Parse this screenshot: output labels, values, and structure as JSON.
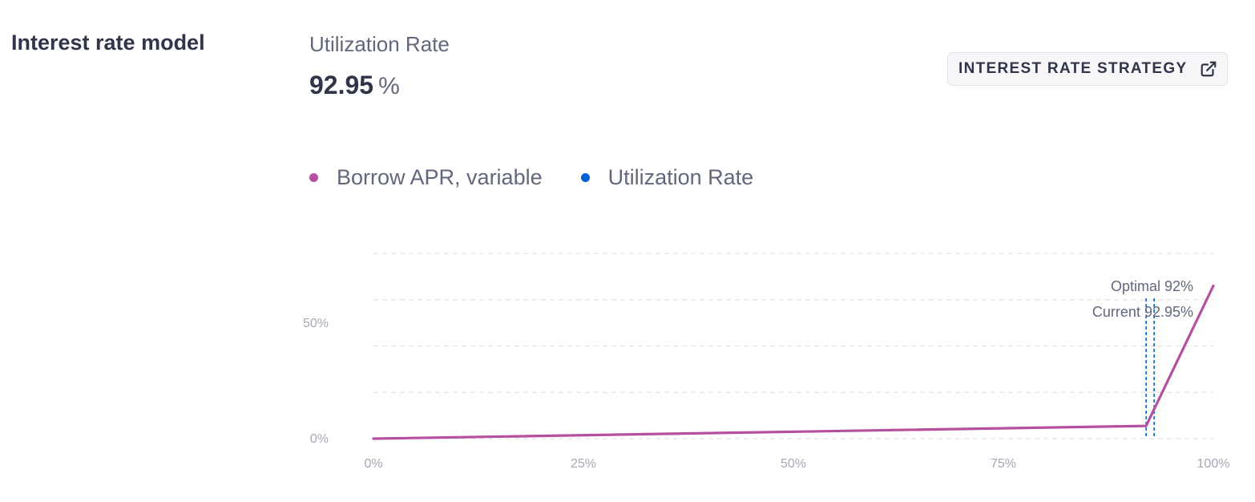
{
  "section": {
    "title": "Interest rate model"
  },
  "utilization": {
    "label": "Utilization Rate",
    "value": "92.95",
    "unit": "%"
  },
  "strategy_button": {
    "label": "INTEREST RATE STRATEGY",
    "icon": "external-link-icon"
  },
  "legend": [
    {
      "label": "Borrow APR, variable",
      "color": "#b6509e"
    },
    {
      "label": "Utilization Rate",
      "color": "#0062d2"
    }
  ],
  "chart_data": {
    "type": "line",
    "title": "",
    "xlabel": "",
    "ylabel": "",
    "xlim": [
      0,
      100
    ],
    "ylim": [
      0,
      80
    ],
    "x_tick_labels": [
      "0%",
      "25%",
      "50%",
      "75%",
      "100%"
    ],
    "x_ticks": [
      0,
      25,
      50,
      75,
      100
    ],
    "y_tick_labels": [
      "0%",
      "50%"
    ],
    "y_ticks": [
      0,
      50
    ],
    "grid_lines": [
      0,
      20,
      40,
      60,
      80
    ],
    "grid": true,
    "series": [
      {
        "name": "Borrow APR, variable",
        "color": "#b6509e",
        "x": [
          0,
          92,
          100
        ],
        "y": [
          0,
          5.5,
          66
        ]
      }
    ],
    "markers": [
      {
        "label": "Optimal 92%",
        "x": 92,
        "color": "#0062d2"
      },
      {
        "label": "Current 92.95%",
        "x": 92.95,
        "color": "#0062d2"
      }
    ]
  }
}
